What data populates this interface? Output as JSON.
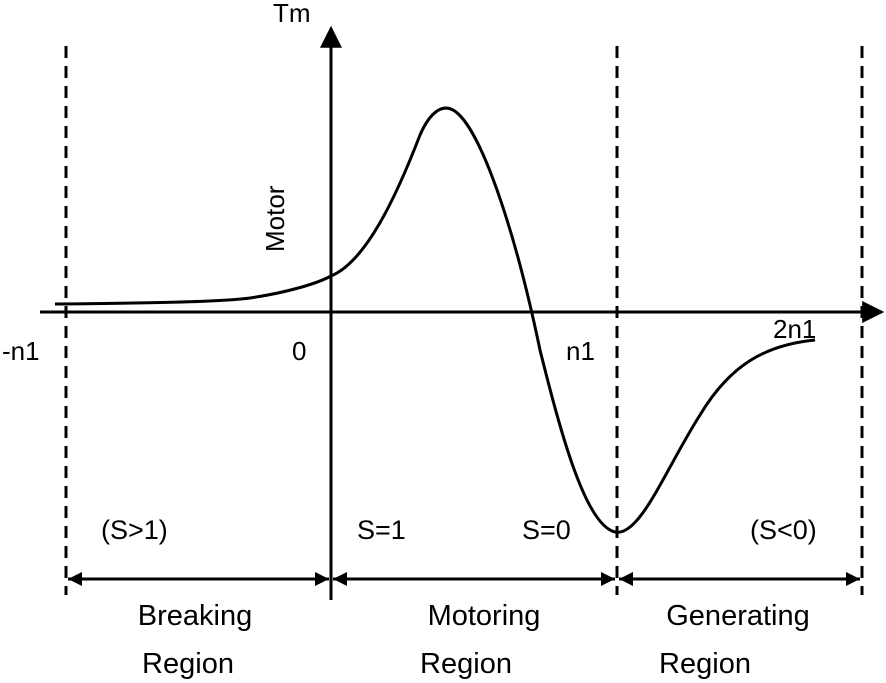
{
  "axes": {
    "y_label": "Tm",
    "motor_label": "Motor",
    "x_ticks": {
      "neg_n1": "-n1",
      "zero": "0",
      "n1": "n1",
      "two_n1": "2n1"
    }
  },
  "slip_labels": {
    "braking": "(S>1)",
    "start": "S=1",
    "sync": "S=0",
    "generating": "(S<0)"
  },
  "regions": {
    "braking": {
      "line1": "Breaking",
      "line2": "Region"
    },
    "motoring": {
      "line1": "Motoring",
      "line2": "Region"
    },
    "generating": {
      "line1": "Generating",
      "line2": "Region"
    }
  },
  "colors": {
    "ink": "#000000",
    "background": "#ffffff"
  }
}
